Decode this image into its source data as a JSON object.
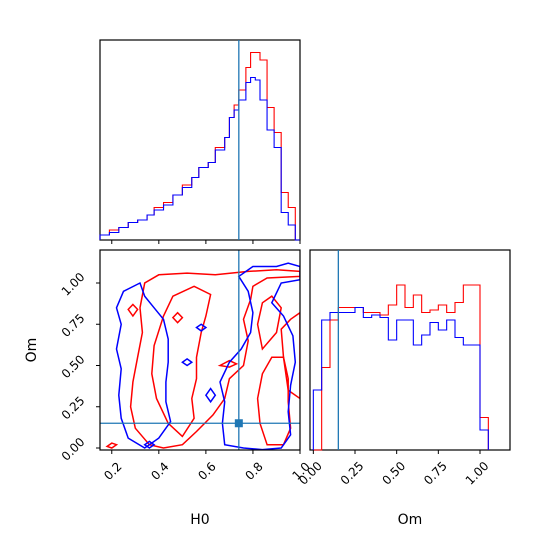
{
  "colors": {
    "red_series": "#ff0000",
    "blue_series": "#0000ff",
    "truth": "#1f77b4",
    "frame": "#000000"
  },
  "chart_data": [
    {
      "panel": "H0 marginal",
      "type": "histogram",
      "xlim": [
        0.15,
        1.0
      ],
      "truth_x": 0.74,
      "bins": [
        0.15,
        0.19,
        0.23,
        0.27,
        0.31,
        0.35,
        0.38,
        0.42,
        0.46,
        0.5,
        0.54,
        0.57,
        0.61,
        0.64,
        0.68,
        0.7,
        0.72,
        0.74,
        0.77,
        0.79,
        0.81,
        0.83,
        0.86,
        0.89,
        0.92,
        0.95,
        0.98,
        1.0
      ],
      "series": [
        {
          "color": "red",
          "counts": [
            2,
            4,
            5,
            7,
            8,
            10,
            13,
            15,
            18,
            22,
            25,
            29,
            31,
            37,
            41,
            49,
            54,
            60,
            69,
            75,
            75,
            72,
            53,
            43,
            19,
            13,
            0
          ]
        },
        {
          "color": "blue",
          "counts": [
            2,
            3,
            5,
            7,
            8,
            10,
            12,
            14,
            18,
            21,
            25,
            29,
            31,
            36,
            41,
            49,
            52,
            56,
            63,
            65,
            64,
            56,
            44,
            37,
            11,
            6,
            0
          ]
        }
      ],
      "xticks": [],
      "yticks": []
    },
    {
      "panel": "H0 vs Om joint contours",
      "type": "contour",
      "xlim": [
        0.15,
        1.0
      ],
      "ylim": [
        0.0,
        1.2
      ],
      "xticks": [
        "0.2",
        "0.4",
        "0.6",
        "0.8",
        "1.0"
      ],
      "yticks": [
        "0.00",
        "0.25",
        "0.50",
        "0.75",
        "1.00"
      ],
      "xlabel": "H0",
      "ylabel": "Om",
      "truth": {
        "x": 0.74,
        "y": 0.15
      },
      "series": [
        {
          "color": "red",
          "contours": [
            [
              [
                0.36,
                0.02
              ],
              [
                0.3,
                0.12
              ],
              [
                0.28,
                0.25
              ],
              [
                0.29,
                0.4
              ],
              [
                0.31,
                0.55
              ],
              [
                0.33,
                0.7
              ],
              [
                0.32,
                0.85
              ],
              [
                0.34,
                1.0
              ],
              [
                0.4,
                1.05
              ],
              [
                0.52,
                1.06
              ],
              [
                0.64,
                1.05
              ],
              [
                0.78,
                1.07
              ],
              [
                0.9,
                1.08
              ],
              [
                1.0,
                1.07
              ],
              [
                1.0,
                1.04
              ],
              [
                0.86,
                1.03
              ],
              [
                0.8,
                0.98
              ],
              [
                0.79,
                0.9
              ],
              [
                0.76,
                0.78
              ],
              [
                0.78,
                0.65
              ],
              [
                0.76,
                0.5
              ],
              [
                0.7,
                0.42
              ],
              [
                0.68,
                0.3
              ],
              [
                0.63,
                0.2
              ],
              [
                0.56,
                0.1
              ],
              [
                0.5,
                0.02
              ],
              [
                0.42,
                0.0
              ],
              [
                0.36,
                0.02
              ]
            ],
            [
              [
                0.5,
                0.07
              ],
              [
                0.44,
                0.15
              ],
              [
                0.39,
                0.3
              ],
              [
                0.37,
                0.45
              ],
              [
                0.38,
                0.62
              ],
              [
                0.42,
                0.8
              ],
              [
                0.46,
                0.92
              ],
              [
                0.55,
                0.98
              ],
              [
                0.62,
                0.93
              ],
              [
                0.6,
                0.8
              ],
              [
                0.58,
                0.7
              ],
              [
                0.56,
                0.55
              ],
              [
                0.56,
                0.42
              ],
              [
                0.54,
                0.3
              ],
              [
                0.55,
                0.18
              ],
              [
                0.5,
                0.07
              ]
            ],
            [
              [
                0.86,
                0.02
              ],
              [
                0.83,
                0.15
              ],
              [
                0.82,
                0.3
              ],
              [
                0.84,
                0.45
              ],
              [
                0.88,
                0.55
              ],
              [
                0.93,
                0.55
              ],
              [
                0.95,
                0.42
              ],
              [
                0.95,
                0.28
              ],
              [
                0.96,
                0.12
              ],
              [
                0.93,
                0.02
              ],
              [
                0.86,
                0.02
              ]
            ],
            [
              [
                0.95,
                0.35
              ],
              [
                0.93,
                0.55
              ],
              [
                0.92,
                0.72
              ],
              [
                0.96,
                0.78
              ],
              [
                1.0,
                0.82
              ],
              [
                1.0,
                0.3
              ],
              [
                0.95,
                0.35
              ]
            ],
            [
              [
                0.84,
                0.6
              ],
              [
                0.82,
                0.75
              ],
              [
                0.84,
                0.88
              ],
              [
                0.88,
                0.92
              ],
              [
                0.92,
                0.85
              ],
              [
                0.9,
                0.7
              ],
              [
                0.84,
                0.6
              ]
            ],
            [
              [
                0.27,
                0.84
              ],
              [
                0.29,
                0.8
              ],
              [
                0.31,
                0.84
              ],
              [
                0.29,
                0.87
              ],
              [
                0.27,
                0.84
              ]
            ],
            [
              [
                0.46,
                0.79
              ],
              [
                0.48,
                0.76
              ],
              [
                0.5,
                0.79
              ],
              [
                0.48,
                0.82
              ],
              [
                0.46,
                0.79
              ]
            ],
            [
              [
                0.66,
                0.5
              ],
              [
                0.7,
                0.49
              ],
              [
                0.73,
                0.51
              ],
              [
                0.7,
                0.53
              ],
              [
                0.66,
                0.5
              ]
            ],
            [
              [
                0.18,
                0.01
              ],
              [
                0.2,
                0.0
              ],
              [
                0.22,
                0.02
              ],
              [
                0.2,
                0.03
              ],
              [
                0.18,
                0.01
              ]
            ]
          ]
        },
        {
          "color": "blue",
          "contours": [
            [
              [
                0.34,
                0.0
              ],
              [
                0.27,
                0.06
              ],
              [
                0.24,
                0.18
              ],
              [
                0.23,
                0.32
              ],
              [
                0.24,
                0.48
              ],
              [
                0.22,
                0.6
              ],
              [
                0.24,
                0.75
              ],
              [
                0.22,
                0.85
              ],
              [
                0.25,
                0.95
              ],
              [
                0.32,
                1.0
              ],
              [
                0.34,
                0.92
              ],
              [
                0.38,
                0.85
              ],
              [
                0.42,
                0.78
              ],
              [
                0.44,
                0.66
              ],
              [
                0.44,
                0.52
              ],
              [
                0.43,
                0.4
              ],
              [
                0.43,
                0.28
              ],
              [
                0.45,
                0.16
              ],
              [
                0.4,
                0.06
              ],
              [
                0.34,
                0.0
              ]
            ],
            [
              [
                0.68,
                0.02
              ],
              [
                0.67,
                0.15
              ],
              [
                0.68,
                0.28
              ],
              [
                0.66,
                0.4
              ],
              [
                0.7,
                0.52
              ],
              [
                0.75,
                0.6
              ],
              [
                0.79,
                0.7
              ],
              [
                0.8,
                0.82
              ],
              [
                0.78,
                0.95
              ],
              [
                0.74,
                1.04
              ],
              [
                0.8,
                1.1
              ],
              [
                0.9,
                1.1
              ],
              [
                0.95,
                1.12
              ],
              [
                1.0,
                1.1
              ],
              [
                1.0,
                1.02
              ],
              [
                0.92,
                1.0
              ],
              [
                0.88,
                0.88
              ],
              [
                0.93,
                0.8
              ],
              [
                0.97,
                0.68
              ],
              [
                0.98,
                0.52
              ],
              [
                0.96,
                0.38
              ],
              [
                0.95,
                0.22
              ],
              [
                0.96,
                0.08
              ],
              [
                0.92,
                0.0
              ],
              [
                0.84,
                -0.01
              ],
              [
                0.76,
                0.0
              ],
              [
                0.68,
                0.02
              ]
            ],
            [
              [
                0.6,
                0.32
              ],
              [
                0.62,
                0.28
              ],
              [
                0.64,
                0.32
              ],
              [
                0.62,
                0.36
              ],
              [
                0.6,
                0.32
              ]
            ],
            [
              [
                0.56,
                0.73
              ],
              [
                0.58,
                0.71
              ],
              [
                0.6,
                0.73
              ],
              [
                0.58,
                0.75
              ],
              [
                0.56,
                0.73
              ]
            ],
            [
              [
                0.5,
                0.52
              ],
              [
                0.52,
                0.5
              ],
              [
                0.54,
                0.52
              ],
              [
                0.52,
                0.54
              ],
              [
                0.5,
                0.52
              ]
            ],
            [
              [
                0.34,
                0.02
              ],
              [
                0.36,
                0.0
              ],
              [
                0.38,
                0.02
              ],
              [
                0.36,
                0.04
              ],
              [
                0.34,
                0.02
              ]
            ]
          ]
        }
      ]
    },
    {
      "panel": "Om marginal",
      "type": "histogram",
      "xlim": [
        -0.02,
        1.18
      ],
      "truth_x": 0.15,
      "bins": [
        0.0,
        0.05,
        0.1,
        0.15,
        0.2,
        0.25,
        0.3,
        0.35,
        0.4,
        0.45,
        0.5,
        0.55,
        0.6,
        0.65,
        0.7,
        0.75,
        0.8,
        0.85,
        0.9,
        0.95,
        1.0,
        1.05
      ],
      "series": [
        {
          "color": "red",
          "counts": [
            0,
            33,
            52,
            57,
            57,
            57,
            55,
            55,
            54,
            58,
            66,
            57,
            62,
            55,
            56,
            58,
            55,
            59,
            66,
            66,
            13,
            0
          ]
        },
        {
          "color": "blue",
          "counts": [
            24,
            52,
            55,
            55,
            55,
            57,
            53,
            54,
            53,
            44,
            52,
            52,
            42,
            46,
            51,
            48,
            52,
            45,
            42,
            42,
            8,
            0
          ]
        }
      ],
      "xticks": [
        "0.00",
        "0.25",
        "0.50",
        "0.75",
        "1.00"
      ],
      "yticks": [],
      "xlabel": "Om"
    }
  ]
}
